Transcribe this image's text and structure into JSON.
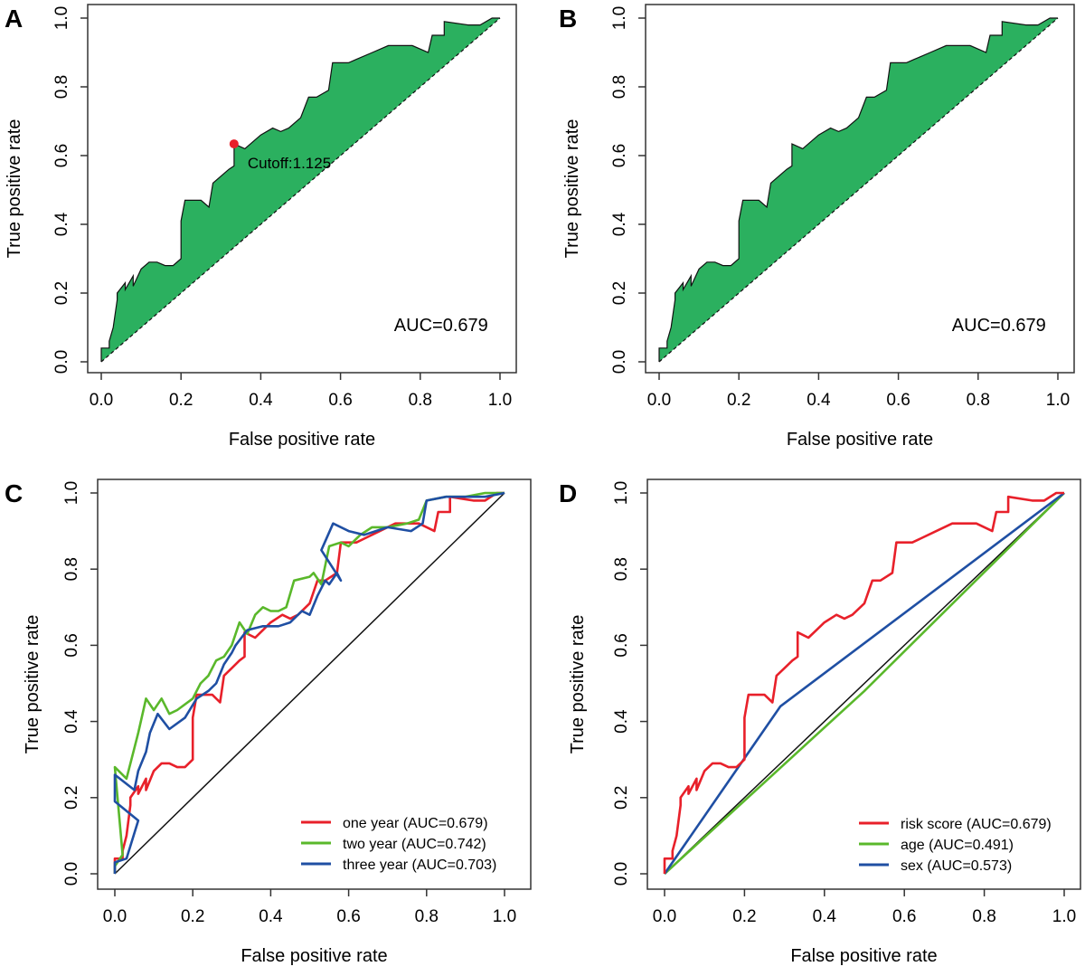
{
  "chart_data": [
    {
      "panel": "A",
      "type": "area",
      "xlabel": "False positive rate",
      "ylabel": "True positive rate",
      "xlim": [
        0,
        1
      ],
      "ylim": [
        0,
        1
      ],
      "ticks": [
        "0.0",
        "0.2",
        "0.4",
        "0.6",
        "0.8",
        "1.0"
      ],
      "fill": "#2bb05f",
      "annotation": "AUC=0.679",
      "cutoff": {
        "label": "Cutoff:1.125",
        "point": [
          0.333,
          0.634
        ],
        "color": "#e8202a"
      },
      "curve": "risk"
    },
    {
      "panel": "B",
      "type": "area",
      "xlabel": "False positive rate",
      "ylabel": "True positive rate",
      "xlim": [
        0,
        1
      ],
      "ylim": [
        0,
        1
      ],
      "ticks": [
        "0.0",
        "0.2",
        "0.4",
        "0.6",
        "0.8",
        "1.0"
      ],
      "fill": "#2bb05f",
      "annotation": "AUC=0.679",
      "curve": "risk"
    },
    {
      "panel": "C",
      "type": "line",
      "xlabel": "False positive rate",
      "ylabel": "True positive rate",
      "xlim": [
        0,
        1
      ],
      "ylim": [
        0,
        1
      ],
      "ticks": [
        "0.0",
        "0.2",
        "0.4",
        "0.6",
        "0.8",
        "1.0"
      ],
      "legend": "bottom-right",
      "series": [
        {
          "name": "one year (AUC=0.679)",
          "color": "#e8202a",
          "curve": "risk"
        },
        {
          "name": "two year (AUC=0.742)",
          "color": "#5ab82b",
          "points": [
            [
              0,
              0
            ],
            [
              0,
              0.02
            ],
            [
              0.02,
              0.05
            ],
            [
              0,
              0.28
            ],
            [
              0.03,
              0.25
            ],
            [
              0.05,
              0.33
            ],
            [
              0.06,
              0.37
            ],
            [
              0.08,
              0.46
            ],
            [
              0.1,
              0.43
            ],
            [
              0.12,
              0.46
            ],
            [
              0.14,
              0.42
            ],
            [
              0.16,
              0.43
            ],
            [
              0.2,
              0.46
            ],
            [
              0.22,
              0.5
            ],
            [
              0.24,
              0.52
            ],
            [
              0.26,
              0.56
            ],
            [
              0.28,
              0.57
            ],
            [
              0.3,
              0.6
            ],
            [
              0.32,
              0.66
            ],
            [
              0.34,
              0.63
            ],
            [
              0.36,
              0.68
            ],
            [
              0.38,
              0.7
            ],
            [
              0.4,
              0.69
            ],
            [
              0.42,
              0.69
            ],
            [
              0.44,
              0.7
            ],
            [
              0.46,
              0.77
            ],
            [
              0.5,
              0.78
            ],
            [
              0.51,
              0.79
            ],
            [
              0.53,
              0.76
            ],
            [
              0.55,
              0.86
            ],
            [
              0.58,
              0.87
            ],
            [
              0.6,
              0.86
            ],
            [
              0.63,
              0.89
            ],
            [
              0.66,
              0.91
            ],
            [
              0.7,
              0.91
            ],
            [
              0.75,
              0.92
            ],
            [
              0.78,
              0.93
            ],
            [
              0.8,
              0.98
            ],
            [
              0.85,
              0.99
            ],
            [
              0.9,
              0.99
            ],
            [
              0.95,
              1
            ],
            [
              1,
              1
            ]
          ]
        },
        {
          "name": "three year (AUC=0.703)",
          "color": "#1f4fa3",
          "points": [
            [
              0,
              0
            ],
            [
              0,
              0.03
            ],
            [
              0.03,
              0.04
            ],
            [
              0.06,
              0.14
            ],
            [
              0,
              0.19
            ],
            [
              0,
              0.26
            ],
            [
              0.05,
              0.22
            ],
            [
              0.06,
              0.27
            ],
            [
              0.08,
              0.32
            ],
            [
              0.09,
              0.37
            ],
            [
              0.11,
              0.42
            ],
            [
              0.14,
              0.38
            ],
            [
              0.18,
              0.41
            ],
            [
              0.21,
              0.46
            ],
            [
              0.24,
              0.48
            ],
            [
              0.26,
              0.5
            ],
            [
              0.28,
              0.55
            ],
            [
              0.3,
              0.58
            ],
            [
              0.31,
              0.6
            ],
            [
              0.34,
              0.64
            ],
            [
              0.38,
              0.65
            ],
            [
              0.42,
              0.65
            ],
            [
              0.45,
              0.66
            ],
            [
              0.48,
              0.69
            ],
            [
              0.5,
              0.68
            ],
            [
              0.52,
              0.73
            ],
            [
              0.54,
              0.77
            ],
            [
              0.55,
              0.76
            ],
            [
              0.57,
              0.79
            ],
            [
              0.58,
              0.77
            ],
            [
              0.53,
              0.85
            ],
            [
              0.56,
              0.92
            ],
            [
              0.6,
              0.9
            ],
            [
              0.64,
              0.89
            ],
            [
              0.7,
              0.91
            ],
            [
              0.76,
              0.9
            ],
            [
              0.79,
              0.92
            ],
            [
              0.8,
              0.98
            ],
            [
              0.85,
              0.99
            ],
            [
              0.95,
              0.99
            ],
            [
              1,
              1
            ]
          ]
        }
      ]
    },
    {
      "panel": "D",
      "type": "line",
      "xlabel": "False positive rate",
      "ylabel": "True positive rate",
      "xlim": [
        0,
        1
      ],
      "ylim": [
        0,
        1
      ],
      "ticks": [
        "0.0",
        "0.2",
        "0.4",
        "0.6",
        "0.8",
        "1.0"
      ],
      "legend": "bottom-right",
      "series": [
        {
          "name": "risk score (AUC=0.679)",
          "color": "#e8202a",
          "curve": "risk"
        },
        {
          "name": "age (AUC=0.491)",
          "color": "#5ab82b",
          "points": [
            [
              0,
              0
            ],
            [
              0.5,
              0.48
            ],
            [
              1,
              1
            ]
          ]
        },
        {
          "name": "sex (AUC=0.573)",
          "color": "#1f4fa3",
          "points": [
            [
              0,
              0
            ],
            [
              0.29,
              0.44
            ],
            [
              1,
              1
            ]
          ]
        }
      ]
    }
  ],
  "risk_curve": [
    [
      0,
      0
    ],
    [
      0,
      0.04
    ],
    [
      0.02,
      0.04
    ],
    [
      0.02,
      0.06
    ],
    [
      0.03,
      0.1
    ],
    [
      0.04,
      0.18
    ],
    [
      0.04,
      0.2
    ],
    [
      0.06,
      0.23
    ],
    [
      0.06,
      0.21
    ],
    [
      0.08,
      0.25
    ],
    [
      0.08,
      0.22
    ],
    [
      0.1,
      0.27
    ],
    [
      0.12,
      0.29
    ],
    [
      0.14,
      0.29
    ],
    [
      0.16,
      0.28
    ],
    [
      0.18,
      0.28
    ],
    [
      0.2,
      0.3
    ],
    [
      0.2,
      0.41
    ],
    [
      0.21,
      0.47
    ],
    [
      0.25,
      0.47
    ],
    [
      0.27,
      0.45
    ],
    [
      0.28,
      0.52
    ],
    [
      0.3,
      0.54
    ],
    [
      0.32,
      0.56
    ],
    [
      0.333,
      0.57
    ],
    [
      0.333,
      0.634
    ],
    [
      0.36,
      0.62
    ],
    [
      0.38,
      0.64
    ],
    [
      0.4,
      0.66
    ],
    [
      0.43,
      0.68
    ],
    [
      0.45,
      0.67
    ],
    [
      0.47,
      0.68
    ],
    [
      0.5,
      0.71
    ],
    [
      0.52,
      0.77
    ],
    [
      0.54,
      0.77
    ],
    [
      0.57,
      0.79
    ],
    [
      0.58,
      0.87
    ],
    [
      0.62,
      0.87
    ],
    [
      0.64,
      0.88
    ],
    [
      0.68,
      0.9
    ],
    [
      0.72,
      0.92
    ],
    [
      0.78,
      0.92
    ],
    [
      0.82,
      0.9
    ],
    [
      0.83,
      0.95
    ],
    [
      0.86,
      0.95
    ],
    [
      0.86,
      0.99
    ],
    [
      0.92,
      0.98
    ],
    [
      0.95,
      0.98
    ],
    [
      0.98,
      1
    ],
    [
      1,
      1
    ]
  ]
}
